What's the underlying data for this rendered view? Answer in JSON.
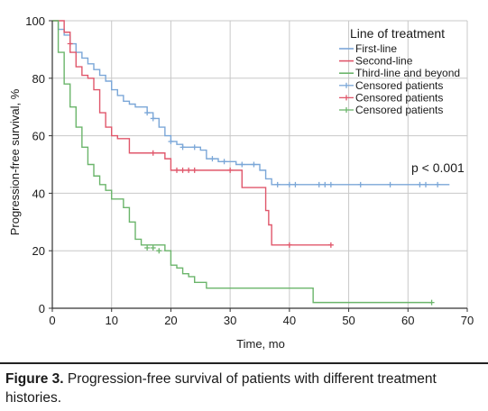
{
  "chart_data": {
    "type": "line",
    "step": true,
    "xlabel": "Time, mo",
    "ylabel": "Progression-free survival, %",
    "xlim": [
      0,
      70
    ],
    "ylim": [
      0,
      100
    ],
    "xticks": [
      "0",
      "10",
      "20",
      "30",
      "40",
      "50",
      "60",
      "70"
    ],
    "yticks": [
      "0",
      "20",
      "40",
      "60",
      "80",
      "100"
    ],
    "grid": true,
    "legend": {
      "title": "Line of treatment",
      "position": "top-right",
      "entries": [
        {
          "label": "First-line",
          "marker": "line",
          "color": "#7ba7d8"
        },
        {
          "label": "Second-line",
          "marker": "line",
          "color": "#e0576b"
        },
        {
          "label": "Third-line and beyond",
          "marker": "line",
          "color": "#6bb56b"
        },
        {
          "label": "Censored patients",
          "marker": "plus",
          "color": "#7ba7d8"
        },
        {
          "label": "Censored patients",
          "marker": "plus",
          "color": "#e0576b"
        },
        {
          "label": "Censored patients",
          "marker": "plus",
          "color": "#6bb56b"
        }
      ]
    },
    "annotation": "p < 0.001",
    "series": [
      {
        "color": "#7ba7d8",
        "x": [
          0,
          1,
          2,
          3,
          4,
          5,
          6,
          7,
          8,
          9,
          10,
          11,
          12,
          13,
          14,
          15,
          16,
          17,
          18,
          19,
          20,
          21,
          22,
          25,
          26,
          28,
          31,
          33,
          35,
          36,
          37,
          67
        ],
        "y": [
          100,
          97,
          95,
          92,
          89,
          87,
          85,
          83,
          81,
          79,
          76,
          74,
          72,
          71,
          70,
          70,
          68,
          66,
          63,
          60,
          58,
          57,
          56,
          55,
          52,
          51,
          50,
          50,
          48,
          45,
          43,
          43
        ],
        "censored": [
          [
            16,
            68
          ],
          [
            17,
            66
          ],
          [
            20,
            58
          ],
          [
            22,
            56
          ],
          [
            24,
            56
          ],
          [
            27,
            52
          ],
          [
            29,
            51
          ],
          [
            32,
            50
          ],
          [
            34,
            50
          ],
          [
            38,
            43
          ],
          [
            40,
            43
          ],
          [
            41,
            43
          ],
          [
            45,
            43
          ],
          [
            46,
            43
          ],
          [
            47,
            43
          ],
          [
            52,
            43
          ],
          [
            57,
            43
          ],
          [
            62,
            43
          ],
          [
            63,
            43
          ],
          [
            65,
            43
          ]
        ]
      },
      {
        "color": "#e0576b",
        "x": [
          0,
          2,
          3,
          4,
          5,
          6,
          7,
          8,
          9,
          10,
          11,
          13,
          19,
          20,
          32,
          36,
          36.5,
          37,
          47
        ],
        "y": [
          100,
          96,
          89,
          84,
          81,
          80,
          76,
          68,
          63,
          60,
          59,
          54,
          52,
          48,
          42,
          34,
          29,
          22,
          22
        ],
        "censored": [
          [
            3,
            92
          ],
          [
            17,
            54
          ],
          [
            21,
            48
          ],
          [
            22,
            48
          ],
          [
            23,
            48
          ],
          [
            24,
            48
          ],
          [
            30,
            48
          ],
          [
            40,
            22
          ],
          [
            47,
            22
          ]
        ]
      },
      {
        "color": "#6bb56b",
        "x": [
          0,
          1,
          2,
          3,
          4,
          5,
          6,
          7,
          8,
          9,
          10,
          12,
          13,
          14,
          15,
          19,
          20,
          21,
          22,
          23,
          24,
          26,
          44,
          64
        ],
        "y": [
          100,
          89,
          78,
          70,
          63,
          56,
          50,
          46,
          43,
          41,
          38,
          35,
          30,
          24,
          22,
          20,
          15,
          14,
          12,
          11,
          9,
          7,
          2,
          2
        ],
        "censored": [
          [
            16,
            21
          ],
          [
            17,
            21
          ],
          [
            18,
            20
          ],
          [
            64,
            2
          ]
        ]
      }
    ]
  },
  "caption": {
    "label": "Figure 3.",
    "text": " Progression-free survival of patients with different treatment histories."
  }
}
